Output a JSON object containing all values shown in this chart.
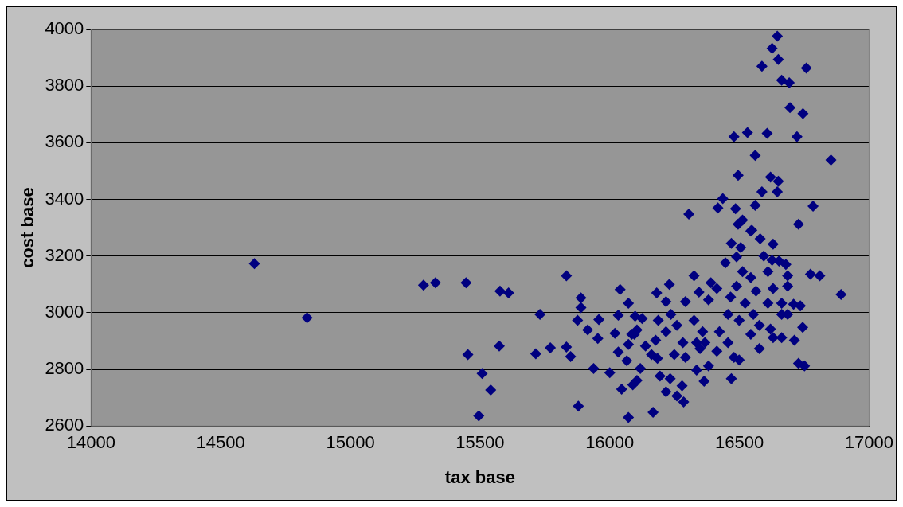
{
  "chart_data": {
    "type": "scatter",
    "xlabel": "tax base",
    "ylabel": "cost base",
    "xlim": [
      14000,
      17000
    ],
    "xticks": [
      14000,
      14500,
      15000,
      15500,
      16000,
      16500,
      17000
    ],
    "ylim": [
      2600,
      4000
    ],
    "yticks": [
      2600,
      2800,
      3000,
      3200,
      3400,
      3600,
      3800,
      4000
    ],
    "grid": "y",
    "legend": false,
    "marker": "diamond",
    "series": [
      {
        "color": "#000080",
        "x": [
          14630,
          14833,
          15282,
          15328,
          15446,
          15453,
          15508,
          15541,
          15495,
          15574,
          15577,
          15610,
          15731,
          15715,
          15771,
          15833,
          15833,
          15849,
          15879,
          15889,
          15889,
          15876,
          15915,
          15958,
          15954,
          15938,
          16000,
          16040,
          16072,
          16033,
          16020,
          16033,
          16066,
          16046,
          16072,
          16095,
          16098,
          16125,
          16085,
          16105,
          16072,
          16138,
          16161,
          16184,
          16118,
          16105,
          16089,
          16167,
          16194,
          16217,
          16259,
          16285,
          16279,
          16233,
          16181,
          16230,
          16217,
          16325,
          16344,
          16292,
          16187,
          16236,
          16217,
          16177,
          16259,
          16282,
          16249,
          16292,
          16325,
          16358,
          16335,
          16348,
          16381,
          16390,
          16413,
          16335,
          16364,
          16381,
          16367,
          16413,
          16423,
          16456,
          16466,
          16446,
          16469,
          16505,
          16544,
          16580,
          16630,
          16489,
          16512,
          16489,
          16522,
          16499,
          16456,
          16479,
          16499,
          16469,
          16544,
          16564,
          16554,
          16577,
          16544,
          16577,
          16594,
          16626,
          16653,
          16679,
          16610,
          16630,
          16686,
          16686,
          16610,
          16663,
          16709,
          16735,
          16663,
          16686,
          16620,
          16630,
          16663,
          16744,
          16712,
          16728,
          16751,
          16774,
          16810,
          16892,
          16853,
          16784,
          16728,
          16479,
          16531,
          16607,
          16722,
          16561,
          16495,
          16620,
          16650,
          16646,
          16587,
          16436,
          16417,
          16485,
          16561,
          16305,
          16512,
          16495,
          16548,
          16646,
          16626,
          16650,
          16587,
          16758,
          16663,
          16692,
          16695,
          16745
        ],
        "values": [
          3173,
          2982,
          3097,
          3106,
          3106,
          2852,
          2785,
          2727,
          2636,
          2882,
          3076,
          3070,
          2994,
          2855,
          2876,
          3130,
          2879,
          2845,
          2670,
          3052,
          3018,
          2973,
          2939,
          2976,
          2909,
          2803,
          2788,
          3082,
          3033,
          2991,
          2927,
          2861,
          2830,
          2730,
          2630,
          2924,
          2988,
          2979,
          2924,
          2939,
          2888,
          2882,
          2852,
          2839,
          2803,
          2761,
          2745,
          2648,
          2776,
          2721,
          2706,
          2685,
          2742,
          2767,
          3070,
          3100,
          3039,
          3130,
          3073,
          3039,
          2973,
          2994,
          2933,
          2903,
          2955,
          2894,
          2852,
          2842,
          2973,
          2933,
          2894,
          2873,
          3045,
          3106,
          3085,
          2797,
          2758,
          2812,
          2894,
          2864,
          2933,
          2994,
          3055,
          3176,
          3245,
          3230,
          3288,
          3261,
          3242,
          3197,
          3145,
          3094,
          3033,
          2973,
          2894,
          2842,
          2833,
          2767,
          3124,
          3076,
          2994,
          2955,
          2924,
          2873,
          3200,
          3185,
          3182,
          3170,
          3145,
          3085,
          3130,
          3094,
          3033,
          3033,
          3030,
          3024,
          2994,
          2994,
          2942,
          2912,
          2912,
          2948,
          2903,
          2821,
          2812,
          3136,
          3130,
          3064,
          3539,
          3376,
          3312,
          3621,
          3636,
          3633,
          3621,
          3555,
          3485,
          3479,
          3464,
          3427,
          3427,
          3403,
          3370,
          3367,
          3379,
          3348,
          3327,
          3312,
          3291,
          3976,
          3933,
          3894,
          3870,
          3864,
          3821,
          3812,
          3724,
          3703
        ]
      }
    ]
  }
}
